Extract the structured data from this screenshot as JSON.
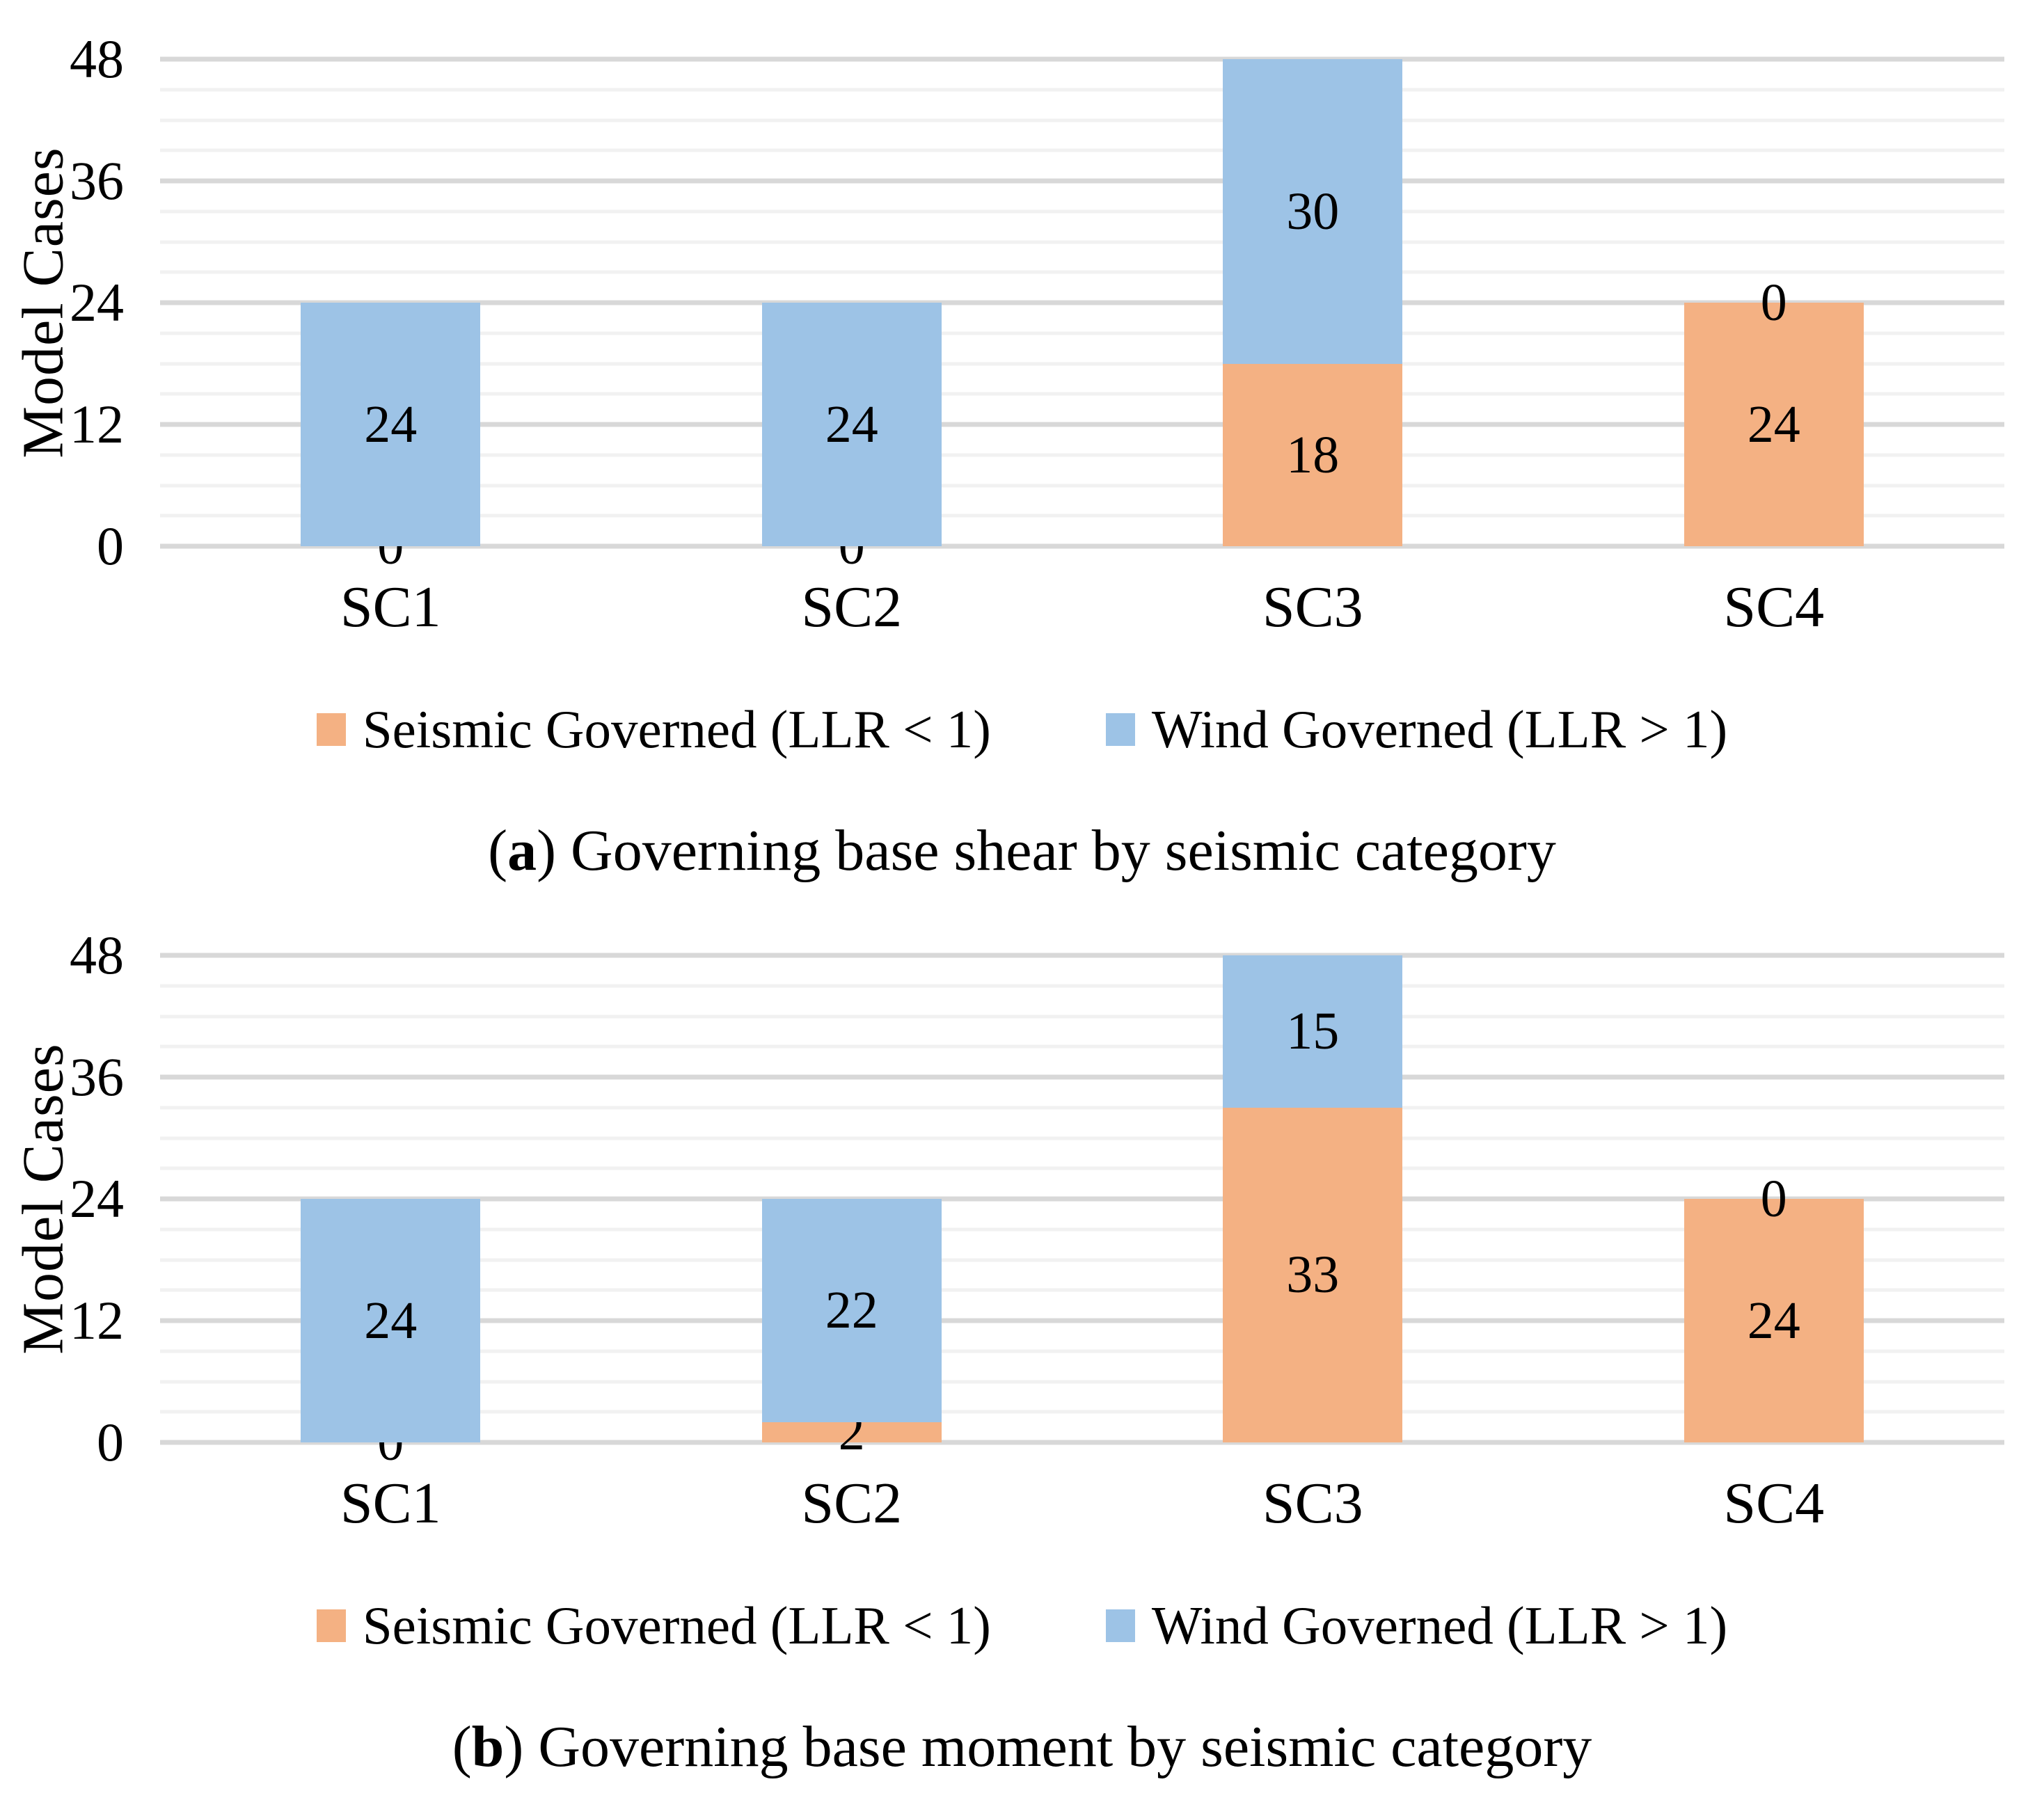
{
  "figure": {
    "background": "#ffffff",
    "text_color": "#000000",
    "gridline_major_color": "#d8d8d8",
    "gridline_minor_color": "#f1f1f1"
  },
  "chart_data": [
    {
      "type": "bar",
      "stacked": true,
      "title": "(a) Governing base shear by seismic category",
      "caption": {
        "prefix": "(",
        "letter": "a",
        "rest": ") Governing base shear by seismic category"
      },
      "ylabel": "Model Cases",
      "xlabel": "",
      "ylim": [
        0,
        48
      ],
      "yticks": [
        0,
        12,
        24,
        36,
        48
      ],
      "major_unit": 12,
      "minor_unit": 3,
      "grid": "horizontal major+minor, no axis lines",
      "legend_position": "bottom",
      "categories": [
        "SC1",
        "SC2",
        "SC3",
        "SC4"
      ],
      "series": [
        {
          "name": "Seismic Governed (LLR < 1)",
          "color": "#F4B183",
          "values": [
            0,
            0,
            18,
            24
          ]
        },
        {
          "name": "Wind Governed (LLR > 1)",
          "color": "#9DC3E6",
          "values": [
            24,
            24,
            30,
            0
          ]
        }
      ]
    },
    {
      "type": "bar",
      "stacked": true,
      "title": "(b) Governing base moment by seismic category",
      "caption": {
        "prefix": "(",
        "letter": "b",
        "rest": ") Governing base moment by seismic category"
      },
      "ylabel": "Model Cases",
      "xlabel": "",
      "ylim": [
        0,
        48
      ],
      "yticks": [
        0,
        12,
        24,
        36,
        48
      ],
      "major_unit": 12,
      "minor_unit": 3,
      "grid": "horizontal major+minor, no axis lines",
      "legend_position": "bottom",
      "categories": [
        "SC1",
        "SC2",
        "SC3",
        "SC4"
      ],
      "series": [
        {
          "name": "Seismic Governed (LLR < 1)",
          "color": "#F4B183",
          "values": [
            0,
            2,
            33,
            24
          ]
        },
        {
          "name": "Wind Governed (LLR > 1)",
          "color": "#9DC3E6",
          "values": [
            24,
            22,
            15,
            0
          ]
        }
      ]
    }
  ]
}
